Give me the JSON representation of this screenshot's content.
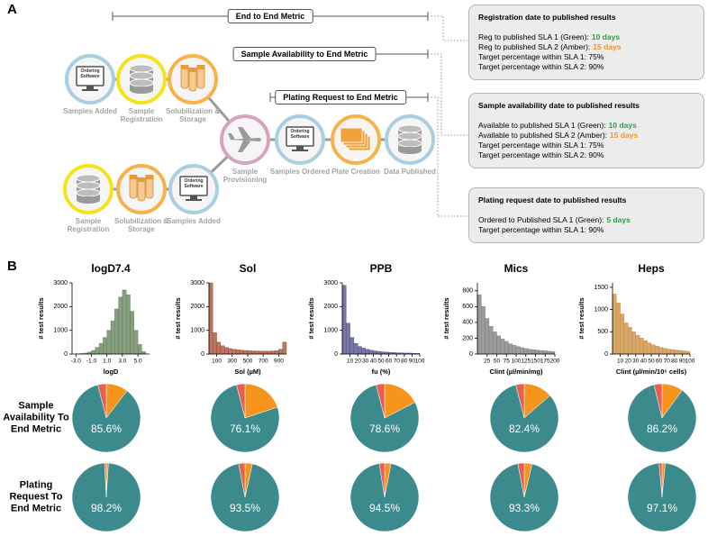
{
  "panel_a": {
    "label": "A",
    "metrics": [
      "End to End Metric",
      "Sample Availability to End Metric",
      "Plating Request to End Metric"
    ],
    "nodes": [
      {
        "label": "Samples Added",
        "icon_text": "Ordering Software"
      },
      {
        "label": "Sample Registration"
      },
      {
        "label": "Solubilization & Storage"
      },
      {
        "label": "Sample Provisioning"
      },
      {
        "label": "Samples Ordered",
        "icon_text": "Ordering Software"
      },
      {
        "label": "Plate Creation"
      },
      {
        "label": "Data Published"
      },
      {
        "label": "Sample Registration"
      },
      {
        "label": "Solubilization & Storage"
      },
      {
        "label": "Samples Added",
        "icon_text": "Ordering Software"
      }
    ],
    "boxes": [
      {
        "title": "Registration date to published results",
        "lines": [
          {
            "text": "Reg to published SLA 1 (Green):",
            "highlight": "10 days",
            "color": "#2e9e44"
          },
          {
            "text": "Reg to published SLA 2 (Amber):",
            "highlight": "15 days",
            "color": "#f7941d"
          },
          {
            "text": "Target percentage within SLA 1: 75%"
          },
          {
            "text": "Target percentage within SLA 2: 90%"
          }
        ]
      },
      {
        "title": "Sample availability date to published results",
        "lines": [
          {
            "text": "Available to published SLA 1 (Green):",
            "highlight": "10 days",
            "color": "#2e9e44"
          },
          {
            "text": "Available to published SLA 2 (Amber):",
            "highlight": "15 days",
            "color": "#f7941d"
          },
          {
            "text": "Target percentage within SLA 1: 75%"
          },
          {
            "text": "Target percentage within SLA 2: 90%"
          }
        ]
      },
      {
        "title": "Plating request date to published results",
        "lines": [
          {
            "text": "Ordered to Published SLA 1 (Green):",
            "highlight": "5 days",
            "color": "#2e9e44"
          },
          {
            "text": "Target percentage within SLA 1: 90%"
          }
        ]
      }
    ]
  },
  "panel_b": {
    "label": "B",
    "row_labels": [
      "Sample Availability To End Metric",
      "Plating Request To End Metric"
    ]
  },
  "chart_data": [
    {
      "type": "histogram",
      "title": "logD7.4",
      "xlabel": "logD",
      "ylabel": "# test results",
      "color": "#5f7f55",
      "bins": [
        -3,
        -2.5,
        -2,
        -1.5,
        -1,
        -0.5,
        0,
        0.5,
        1,
        1.5,
        2,
        2.5,
        3,
        3.5,
        4,
        4.5,
        5,
        5.5,
        6
      ],
      "counts": [
        10,
        20,
        40,
        80,
        150,
        280,
        450,
        700,
        1000,
        1400,
        1900,
        2400,
        2700,
        2500,
        1800,
        1000,
        400,
        100
      ],
      "xlim": [
        -3.5,
        6.5
      ],
      "ylim": [
        0,
        3000
      ],
      "xticks": [
        {
          "value": -3,
          "label": "-3.0"
        },
        {
          "value": -1,
          "label": "-1.0"
        },
        {
          "value": 1,
          "label": "1.0"
        },
        {
          "value": 3,
          "label": "3.0"
        },
        {
          "value": 5,
          "label": "5.0"
        }
      ],
      "yticks": [
        0,
        1000,
        2000,
        3000
      ]
    },
    {
      "type": "histogram",
      "title": "Sol",
      "xlabel": "Sol (µM)",
      "ylabel": "# test results",
      "color": "#a3452e",
      "bins": [
        0,
        50,
        100,
        150,
        200,
        250,
        300,
        350,
        400,
        450,
        500,
        550,
        600,
        650,
        700,
        750,
        800,
        850,
        900,
        950,
        1000
      ],
      "counts": [
        3000,
        900,
        500,
        350,
        280,
        230,
        200,
        180,
        160,
        150,
        140,
        130,
        130,
        120,
        120,
        120,
        130,
        140,
        200,
        500
      ],
      "xlim": [
        0,
        1000
      ],
      "ylim": [
        0,
        3000
      ],
      "xticks": [
        100,
        300,
        500,
        700,
        900
      ],
      "yticks": [
        0,
        1000,
        2000,
        3000
      ]
    },
    {
      "type": "histogram",
      "title": "PPB",
      "xlabel": "fu (%)",
      "ylabel": "# test results",
      "color": "#4b4a86",
      "bins": [
        0,
        5,
        10,
        15,
        20,
        25,
        30,
        35,
        40,
        45,
        50,
        55,
        60,
        65,
        70,
        75,
        80,
        85,
        90,
        95,
        100
      ],
      "counts": [
        2900,
        1300,
        700,
        450,
        320,
        250,
        200,
        160,
        130,
        110,
        90,
        80,
        70,
        60,
        50,
        50,
        40,
        40,
        30,
        30
      ],
      "xlim": [
        0,
        100
      ],
      "ylim": [
        0,
        3000
      ],
      "xticks": [
        10,
        20,
        30,
        40,
        50,
        60,
        70,
        80,
        90,
        100
      ],
      "yticks": [
        0,
        1000,
        2000,
        3000
      ]
    },
    {
      "type": "histogram",
      "title": "Mics",
      "xlabel": "Clint (µl/min/mg)",
      "ylabel": "# test results",
      "color": "#7a7a7a",
      "bins": [
        0,
        10,
        20,
        30,
        40,
        50,
        60,
        70,
        80,
        90,
        100,
        110,
        120,
        130,
        140,
        150,
        160,
        170,
        180,
        190,
        200
      ],
      "counts": [
        750,
        600,
        450,
        350,
        280,
        230,
        190,
        160,
        130,
        110,
        95,
        80,
        70,
        60,
        55,
        50,
        45,
        40,
        35,
        30
      ],
      "xlim": [
        0,
        200
      ],
      "ylim": [
        0,
        900
      ],
      "xticks": [
        25,
        50,
        75,
        100,
        125,
        150,
        175,
        200
      ],
      "yticks": [
        0,
        200,
        400,
        600,
        800
      ]
    },
    {
      "type": "histogram",
      "title": "Heps",
      "xlabel": "Clint (µl/min/10⁶ cells)",
      "ylabel": "# test results",
      "color": "#c78a3a",
      "bins": [
        0,
        5,
        10,
        15,
        20,
        25,
        30,
        35,
        40,
        45,
        50,
        55,
        60,
        65,
        70,
        75,
        80,
        85,
        90,
        95,
        100
      ],
      "counts": [
        1350,
        1150,
        900,
        700,
        600,
        500,
        420,
        360,
        300,
        250,
        210,
        180,
        150,
        130,
        110,
        100,
        90,
        80,
        70,
        60
      ],
      "xlim": [
        0,
        100
      ],
      "ylim": [
        0,
        1600
      ],
      "xticks": [
        10,
        20,
        30,
        40,
        50,
        60,
        70,
        80,
        90,
        100
      ],
      "yticks": [
        0,
        500,
        1000,
        1500
      ]
    },
    {
      "type": "pie",
      "values": [
        10.4,
        85.6,
        4.0
      ],
      "colors": [
        "#f7941d",
        "#3d8a8c",
        "#e8604c"
      ],
      "value_labels": [
        null,
        "85.6%",
        null
      ]
    },
    {
      "type": "pie",
      "values": [
        19.9,
        76.1,
        4.0
      ],
      "colors": [
        "#f7941d",
        "#3d8a8c",
        "#e8604c"
      ],
      "value_labels": [
        null,
        "76.1%",
        null
      ]
    },
    {
      "type": "pie",
      "values": [
        17.4,
        78.6,
        4.0
      ],
      "colors": [
        "#f7941d",
        "#3d8a8c",
        "#e8604c"
      ],
      "value_labels": [
        null,
        "78.6%",
        null
      ]
    },
    {
      "type": "pie",
      "values": [
        13.6,
        82.4,
        4.0
      ],
      "colors": [
        "#f7941d",
        "#3d8a8c",
        "#e8604c"
      ],
      "value_labels": [
        null,
        "82.4%",
        null
      ]
    },
    {
      "type": "pie",
      "values": [
        10.0,
        86.2,
        3.8
      ],
      "colors": [
        "#f7941d",
        "#3d8a8c",
        "#e8604c"
      ],
      "value_labels": [
        null,
        "86.2%",
        null
      ]
    },
    {
      "type": "pie",
      "values": [
        1.0,
        98.2,
        0.8
      ],
      "colors": [
        "#f7941d",
        "#3d8a8c",
        "#e8604c"
      ],
      "value_labels": [
        null,
        "98.2%",
        null
      ]
    },
    {
      "type": "pie",
      "values": [
        3.5,
        93.5,
        3.0
      ],
      "colors": [
        "#f7941d",
        "#3d8a8c",
        "#e8604c"
      ],
      "value_labels": [
        null,
        "93.5%",
        null
      ]
    },
    {
      "type": "pie",
      "values": [
        3.0,
        94.5,
        2.5
      ],
      "colors": [
        "#f7941d",
        "#3d8a8c",
        "#e8604c"
      ],
      "value_labels": [
        null,
        "94.5%",
        null
      ]
    },
    {
      "type": "pie",
      "values": [
        3.7,
        93.3,
        3.0
      ],
      "colors": [
        "#f7941d",
        "#3d8a8c",
        "#e8604c"
      ],
      "value_labels": [
        null,
        "93.3%",
        null
      ]
    },
    {
      "type": "pie",
      "values": [
        1.5,
        97.1,
        1.4
      ],
      "colors": [
        "#f7941d",
        "#3d8a8c",
        "#e8604c"
      ],
      "value_labels": [
        null,
        "97.1%",
        null
      ]
    }
  ]
}
